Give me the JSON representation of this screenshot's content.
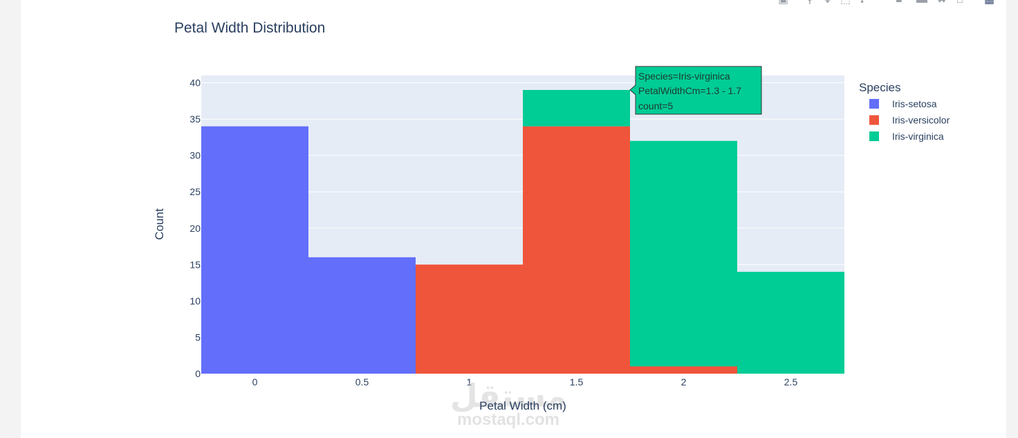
{
  "chart_data": {
    "type": "bar",
    "barmode": "stack",
    "title": "Petal Width Distribution",
    "xlabel": "Petal Width (cm)",
    "ylabel": "Count",
    "xlim": [
      -0.25,
      2.75
    ],
    "ylim": [
      0,
      41
    ],
    "x_ticks": [
      "0",
      "0.5",
      "1",
      "1.5",
      "2",
      "2.5"
    ],
    "y_ticks": [
      "0",
      "5",
      "10",
      "15",
      "20",
      "25",
      "30",
      "35",
      "40"
    ],
    "bin_width": 0.5,
    "bins": [
      {
        "start": -0.25,
        "end": 0.25
      },
      {
        "start": 0.25,
        "end": 0.75
      },
      {
        "start": 0.75,
        "end": 1.25
      },
      {
        "start": 1.25,
        "end": 1.75
      },
      {
        "start": 1.75,
        "end": 2.25
      },
      {
        "start": 2.25,
        "end": 2.75
      }
    ],
    "series": [
      {
        "name": "Iris-setosa",
        "color": "#636efa",
        "values": [
          34,
          16,
          0,
          0,
          0,
          0
        ]
      },
      {
        "name": "Iris-versicolor",
        "color": "#ef553b",
        "values": [
          0,
          0,
          15,
          34,
          1,
          0
        ]
      },
      {
        "name": "Iris-virginica",
        "color": "#00cc96",
        "values": [
          0,
          0,
          0,
          5,
          31,
          14
        ]
      }
    ],
    "legend": {
      "title": "Species",
      "placement": "right"
    },
    "grid": true,
    "plot_bg": "#e5ecf6"
  },
  "tooltip": {
    "lines": [
      "Species=Iris-virginica",
      "PetalWidthCm=1.3 - 1.7",
      "count=5"
    ]
  },
  "watermark": {
    "arabic": "مستقل",
    "latin": "mostaql.com"
  },
  "modebar": {
    "icons": [
      "camera-icon",
      "zoom-icon",
      "pan-icon",
      "box-select-icon",
      "lasso-icon",
      "zoom-in-icon",
      "zoom-out-icon",
      "autoscale-icon",
      "reset-axes-icon",
      "plotly-logo-icon"
    ]
  }
}
